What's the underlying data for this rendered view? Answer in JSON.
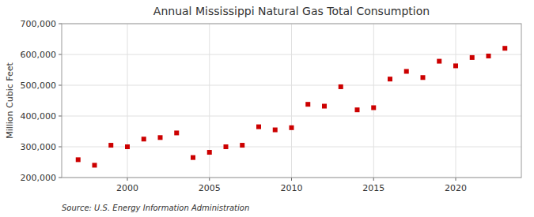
{
  "chart_data": {
    "type": "scatter",
    "title": "Annual Mississippi Natural Gas Total Consumption",
    "ylabel": "Million Cubic Feet",
    "source": "Source: U.S. Energy Information Administration",
    "x": [
      1997,
      1998,
      1999,
      2000,
      2001,
      2002,
      2003,
      2004,
      2005,
      2006,
      2007,
      2008,
      2009,
      2010,
      2011,
      2012,
      2013,
      2014,
      2015,
      2016,
      2017,
      2018,
      2019,
      2020,
      2021,
      2022,
      2023
    ],
    "values": [
      258000,
      240000,
      305000,
      300000,
      325000,
      330000,
      345000,
      265000,
      282000,
      300000,
      305000,
      365000,
      355000,
      362000,
      438000,
      432000,
      495000,
      420000,
      427000,
      520000,
      545000,
      525000,
      578000,
      563000,
      590000,
      595000,
      620000
    ],
    "color": "#cc0000",
    "marker": "square",
    "xlim": [
      1996,
      2024
    ],
    "xticks": [
      2000,
      2005,
      2010,
      2015,
      2020
    ],
    "ylim": [
      200000,
      700000
    ],
    "yticks": [
      {
        "value": 200000,
        "label": "200,000"
      },
      {
        "value": 300000,
        "label": "300,000"
      },
      {
        "value": 400000,
        "label": "400,000"
      },
      {
        "value": 500000,
        "label": "500,000"
      },
      {
        "value": 600000,
        "label": "600,000"
      },
      {
        "value": 700000,
        "label": "700,000"
      }
    ],
    "grid": true
  }
}
